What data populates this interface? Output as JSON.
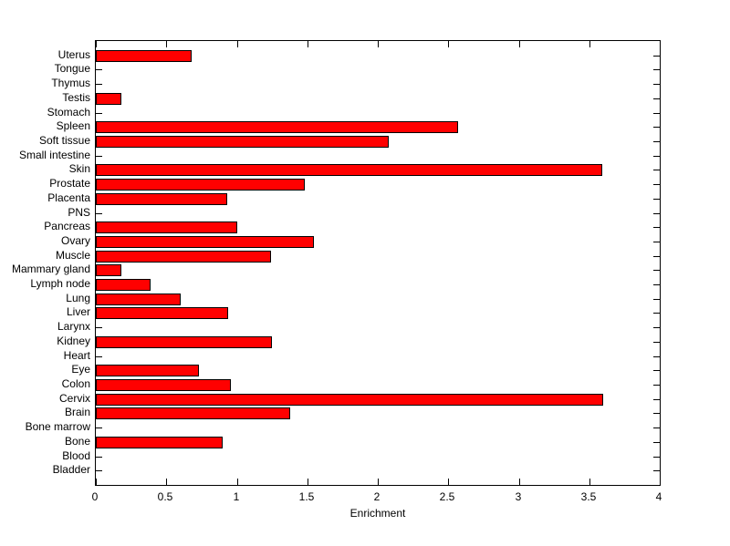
{
  "figure": {
    "background_color": "#ffffff",
    "axis_color": "#000000",
    "text_color": "#000000"
  },
  "chart_data": {
    "type": "bar",
    "orientation": "horizontal",
    "title": "",
    "xlabel": "Enrichment",
    "ylabel": "",
    "xlim": [
      0,
      4
    ],
    "xticks": [
      0,
      0.5,
      1,
      1.5,
      2,
      2.5,
      3,
      3.5,
      4
    ],
    "xtick_labels": [
      "0",
      "0.5",
      "1",
      "1.5",
      "2",
      "2.5",
      "3",
      "3.5",
      "4"
    ],
    "grid": false,
    "legend": null,
    "bar_color": "#ff0000",
    "bar_edge_color": "#000000",
    "categories": [
      "Uterus",
      "Tongue",
      "Thymus",
      "Testis",
      "Stomach",
      "Spleen",
      "Soft tissue",
      "Small intestine",
      "Skin",
      "Prostate",
      "Placenta",
      "PNS",
      "Pancreas",
      "Ovary",
      "Muscle",
      "Mammary gland",
      "Lymph node",
      "Lung",
      "Liver",
      "Larynx",
      "Kidney",
      "Heart",
      "Eye",
      "Colon",
      "Cervix",
      "Brain",
      "Bone marrow",
      "Bone",
      "Blood",
      "Bladder"
    ],
    "values": [
      0.68,
      0,
      0,
      0.18,
      0,
      2.57,
      2.08,
      0,
      3.59,
      1.48,
      0.93,
      0,
      1.0,
      1.55,
      1.24,
      0.18,
      0.39,
      0.6,
      0.94,
      0,
      1.25,
      0,
      0.73,
      0.96,
      3.6,
      1.38,
      0,
      0.9,
      0,
      0
    ]
  }
}
